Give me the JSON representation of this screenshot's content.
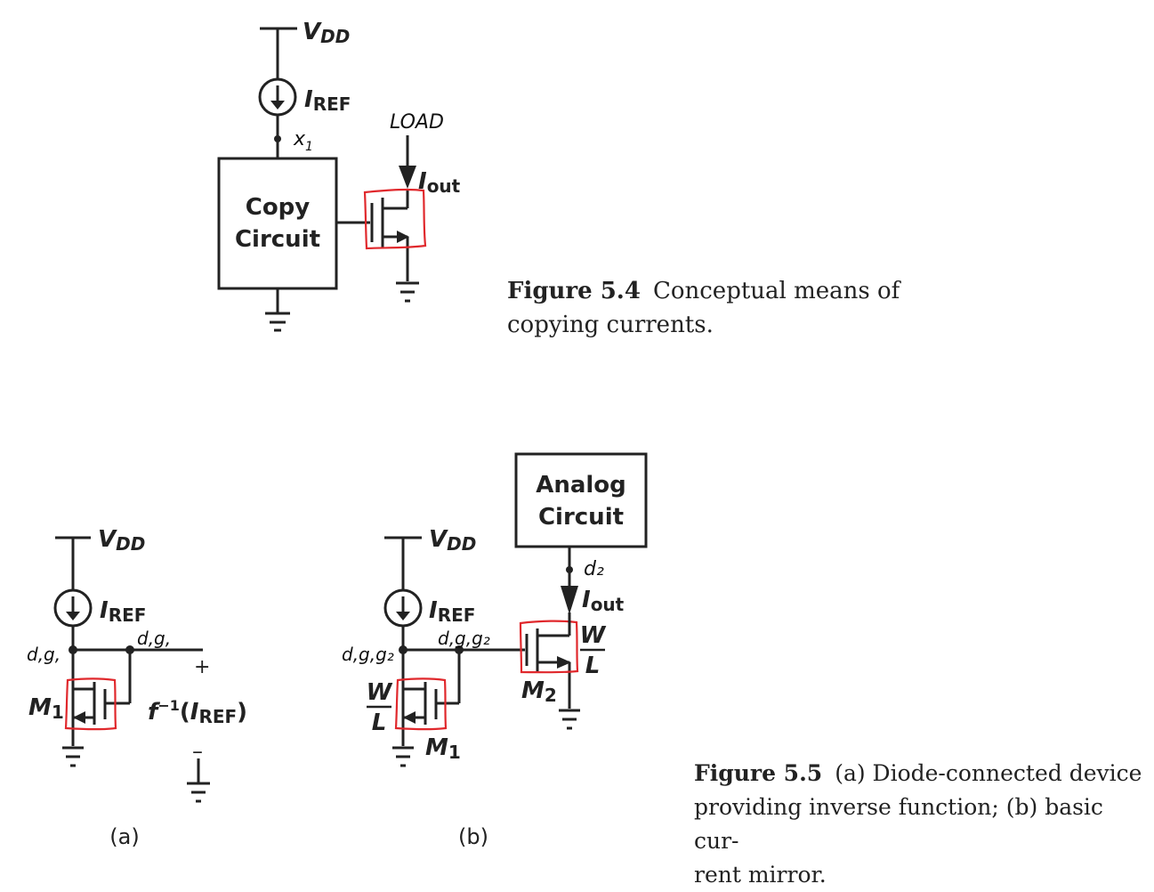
{
  "fig54": {
    "vdd_main": "V",
    "vdd_sub": "DD",
    "iref_main": "I",
    "iref_sub": "REF",
    "node_x": "x",
    "node_x_sub": "1",
    "box_line1": "Copy",
    "box_line2": "Circuit",
    "load_note": "LOAD",
    "iout_main": "I",
    "iout_sub": "out",
    "caption_number": "Figure 5.4",
    "caption_line1": "Conceptual means of",
    "caption_line2": "copying currents."
  },
  "fig55a": {
    "vdd_main": "V",
    "vdd_sub": "DD",
    "iref_main": "I",
    "iref_sub": "REF",
    "note_left": "d,g,",
    "note_right": "d,g,",
    "m1_main": "M",
    "m1_sub": "1",
    "plus": "+",
    "minus": "–",
    "finv": "f",
    "finv_sup": "−1",
    "finv_arg_open": "(",
    "finv_arg_main": "I",
    "finv_arg_sub": "REF",
    "finv_arg_close": ")",
    "panel_label": "(a)"
  },
  "fig55b": {
    "vdd_main": "V",
    "vdd_sub": "DD",
    "iref_main": "I",
    "iref_sub": "REF",
    "note_left": "d,g,g₂",
    "note_mid": "d,g,g₂",
    "note_d2": "d₂",
    "box_line1": "Analog",
    "box_line2": "Circuit",
    "iout_main": "I",
    "iout_sub": "out",
    "w_label": "W",
    "l_label": "L",
    "w2_label": "W",
    "l2_label": "L",
    "m1_main": "M",
    "m1_sub": "1",
    "m2_main": "M",
    "m2_sub": "2",
    "panel_label": "(b)"
  },
  "fig55_caption": {
    "number": "Figure 5.5",
    "line1": "(a) Diode-connected device",
    "line2": "providing inverse function; (b) basic cur-",
    "line3": "rent mirror."
  }
}
